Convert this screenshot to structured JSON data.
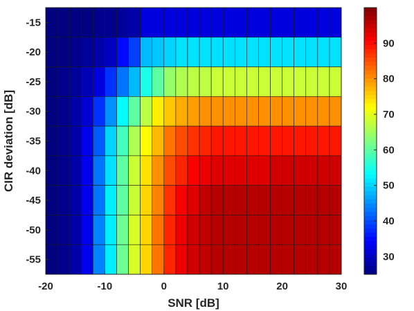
{
  "chart_data": {
    "type": "heatmap",
    "title": "",
    "xlabel": "SNR [dB]",
    "ylabel": "CIR deviation [dB]",
    "xlim": [
      -20,
      30
    ],
    "ylim": [
      -57.5,
      -12.5
    ],
    "x_ticks": [
      "-20",
      "-10",
      "0",
      "10",
      "20",
      "30"
    ],
    "y_ticks": [
      "-15",
      "-20",
      "-25",
      "-30",
      "-35",
      "-40",
      "-45",
      "-50",
      "-55"
    ],
    "x": [
      -19,
      -17,
      -15,
      -13,
      -11,
      -9,
      -7,
      -5,
      -3,
      -1,
      1,
      3,
      5,
      7,
      9,
      11,
      13,
      15,
      17,
      19,
      21,
      23,
      25,
      27,
      29
    ],
    "y": [
      -15,
      -20,
      -25,
      -30,
      -35,
      -40,
      -45,
      -50,
      -55
    ],
    "colorbar": {
      "min": 25,
      "max": 100,
      "ticks": [
        "30",
        "40",
        "50",
        "60",
        "70",
        "80",
        "90"
      ],
      "colormap": "jet"
    },
    "z": [
      [
        25,
        25,
        25,
        25,
        26,
        26,
        27,
        28,
        32,
        32,
        32,
        32,
        32,
        32,
        32,
        32,
        32,
        32,
        32,
        32,
        32,
        32,
        32,
        32,
        32
      ],
      [
        25,
        25,
        26,
        27,
        28,
        30,
        35,
        39,
        48,
        49,
        50,
        51,
        51,
        51,
        51,
        51,
        51,
        51,
        51,
        51,
        51,
        51,
        51,
        51,
        51
      ],
      [
        25,
        26,
        27,
        29,
        32,
        38,
        43,
        48,
        55,
        60,
        64,
        66,
        67,
        67,
        68,
        68,
        68,
        68,
        68,
        68,
        68,
        68,
        68,
        68,
        68
      ],
      [
        25,
        26,
        28,
        31,
        38,
        45,
        53,
        60,
        67,
        73,
        76,
        78,
        79,
        80,
        80,
        80,
        80,
        80,
        80,
        80,
        80,
        80,
        80,
        80,
        80
      ],
      [
        25,
        26,
        28,
        33,
        41,
        50,
        58,
        66,
        72,
        77,
        82,
        85,
        87,
        88,
        89,
        89,
        89,
        89,
        89,
        89,
        89,
        89,
        89,
        89,
        89
      ],
      [
        25,
        26,
        28,
        33,
        43,
        51,
        60,
        68,
        74,
        80,
        85,
        88,
        91,
        92,
        93,
        93,
        93,
        93,
        93,
        94,
        94,
        94,
        94,
        94,
        94
      ],
      [
        25,
        26,
        28,
        33,
        43,
        52,
        60,
        68,
        75,
        81,
        87,
        91,
        93,
        95,
        96,
        96,
        96,
        96,
        96,
        96,
        96,
        96,
        96,
        96,
        96
      ],
      [
        25,
        26,
        28,
        33,
        44,
        52,
        61,
        69,
        75,
        82,
        88,
        92,
        94,
        95,
        96,
        96,
        96,
        96,
        96,
        96,
        96,
        96,
        96,
        96,
        96
      ],
      [
        25,
        26,
        28,
        33,
        44,
        52,
        61,
        69,
        75,
        82,
        88,
        92,
        94,
        95,
        96,
        96,
        96,
        96,
        96,
        96,
        96,
        96,
        96,
        96,
        96
      ]
    ]
  }
}
